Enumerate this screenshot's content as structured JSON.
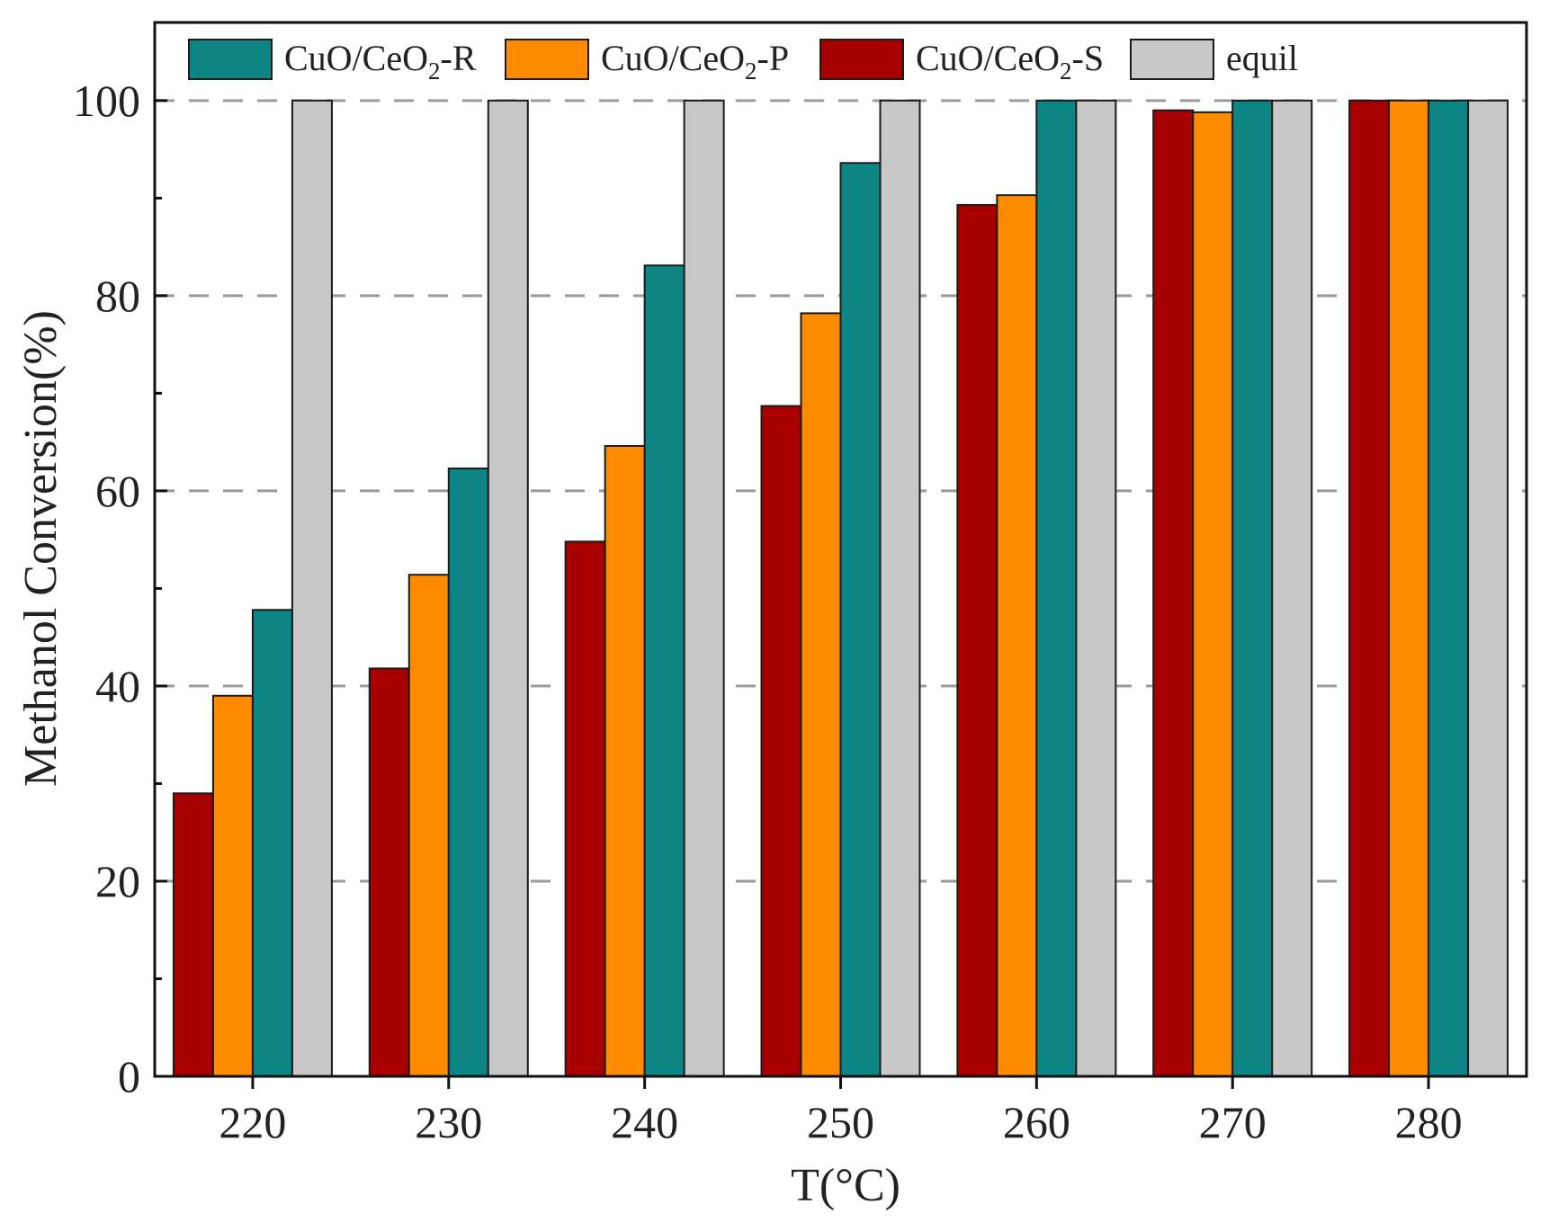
{
  "chart_data": {
    "type": "bar",
    "title": "",
    "xlabel": "T(°C)",
    "ylabel": "Methanol Conversion(%)",
    "ylim": [
      0,
      108
    ],
    "yticks": [
      0,
      20,
      40,
      60,
      80,
      100
    ],
    "categories": [
      "220",
      "230",
      "240",
      "250",
      "260",
      "270",
      "280"
    ],
    "series": [
      {
        "name": "CuO/CeO2-S",
        "label_main": "CuO/CeO",
        "label_sub": "2",
        "label_tail": "-S",
        "color": "#a80000",
        "values": [
          29,
          41.8,
          54.8,
          68.7,
          89.3,
          99,
          100
        ]
      },
      {
        "name": "CuO/CeO2-P",
        "label_main": "CuO/CeO",
        "label_sub": "2",
        "label_tail": "-P",
        "color": "#ff8c00",
        "values": [
          39,
          51.4,
          64.6,
          78.2,
          90.3,
          98.8,
          100
        ]
      },
      {
        "name": "CuO/CeO2-R",
        "label_main": "CuO/CeO",
        "label_sub": "2",
        "label_tail": "-R",
        "color": "#0e8585",
        "values": [
          47.8,
          62.3,
          83.1,
          93.6,
          100,
          100,
          100
        ]
      },
      {
        "name": "equil",
        "label_main": "equil",
        "label_sub": "",
        "label_tail": "",
        "color": "#c8c8c8",
        "values": [
          100,
          100,
          100,
          100,
          100,
          100,
          100
        ]
      }
    ],
    "legend_order": [
      2,
      1,
      0,
      3
    ],
    "legend_position": "top",
    "grid": "dashed horizontal"
  }
}
